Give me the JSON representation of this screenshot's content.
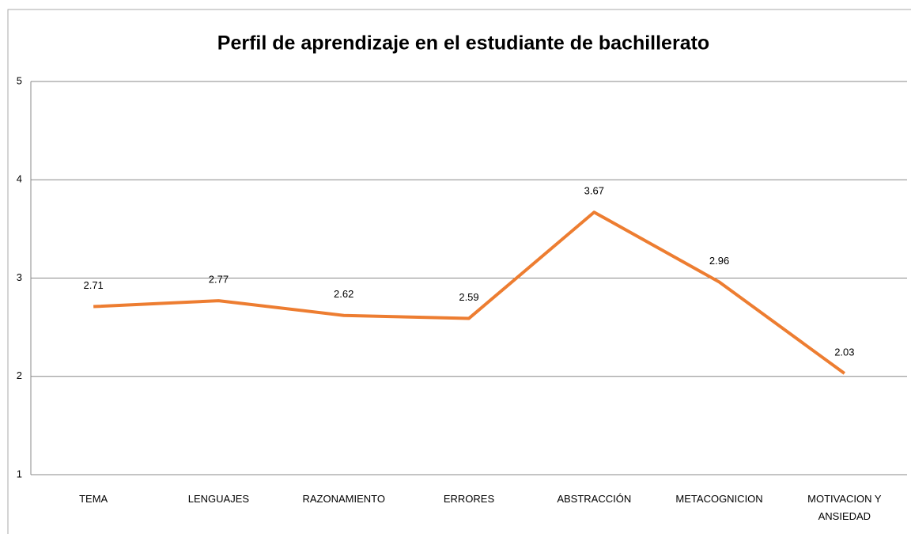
{
  "chart_data": {
    "type": "line",
    "title": "Perfil de aprendizaje en el estudiante de bachillerato",
    "categories": [
      "TEMA",
      "LENGUAJES",
      "RAZONAMIENTO",
      "ERRORES",
      "ABSTRACCIÓN",
      "METACOGNICION",
      "MOTIVACION Y ANSIEDAD"
    ],
    "values": [
      2.71,
      2.77,
      2.62,
      2.59,
      3.67,
      2.96,
      2.03
    ],
    "color": "#ed7d31",
    "ylim": [
      1,
      5
    ],
    "yticks": [
      1,
      2,
      3,
      4,
      5
    ],
    "grid": true
  }
}
